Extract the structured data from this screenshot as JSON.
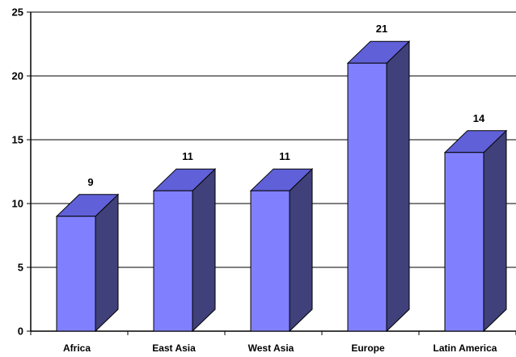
{
  "chart_data": {
    "type": "bar",
    "title": "",
    "xlabel": "",
    "ylabel": "",
    "categories": [
      "Africa",
      "East Asia",
      "West Asia",
      "Europe",
      "Latin America"
    ],
    "values": [
      9,
      11,
      11,
      21,
      14
    ],
    "data_labels": [
      "9",
      "11",
      "11",
      "21",
      "14"
    ],
    "ylim": [
      0,
      25
    ],
    "yticks": [
      0,
      5,
      10,
      15,
      20,
      25
    ],
    "ytick_labels": [
      "0",
      "5",
      "10",
      "15",
      "20",
      "25"
    ],
    "grid": true,
    "legend": "none",
    "style": "3d-column",
    "colors": {
      "bar_front": "#8080FF",
      "bar_top": "#6060D8",
      "bar_side": "#40407A",
      "outline": "#000000",
      "gridline": "#000000",
      "axis": "#000000"
    }
  }
}
